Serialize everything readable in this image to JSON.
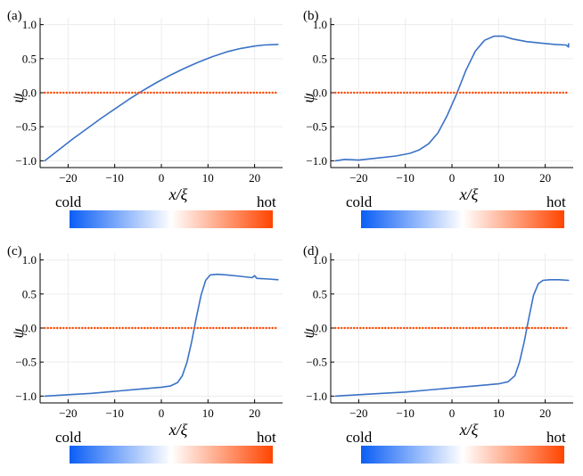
{
  "chart_data": [
    {
      "type": "line",
      "panel_label": "(a)",
      "xlabel": "x/ξ",
      "ylabel": "ψ",
      "xlim": [
        -26,
        26
      ],
      "ylim": [
        -1.1,
        1.1
      ],
      "xticks": [
        "−20",
        "−10",
        "0",
        "10",
        "20"
      ],
      "xtick_values": [
        -20,
        -10,
        0,
        10,
        20
      ],
      "yticks": [
        "−1.0",
        "−0.5",
        "0.0",
        "0.5",
        "1.0"
      ],
      "ytick_values": [
        -1.0,
        -0.5,
        0.0,
        0.5,
        1.0
      ],
      "grid": true,
      "series": [
        {
          "name": "psi",
          "style": "solid",
          "color": "#3a72c6",
          "x": [
            -25,
            -22,
            -19,
            -16,
            -13,
            -10,
            -7,
            -4,
            -1,
            2,
            5,
            8,
            11,
            14,
            17,
            20,
            22,
            25
          ],
          "y": [
            -1.0,
            -0.84,
            -0.68,
            -0.53,
            -0.38,
            -0.24,
            -0.1,
            0.03,
            0.15,
            0.26,
            0.36,
            0.45,
            0.53,
            0.6,
            0.65,
            0.685,
            0.7,
            0.71
          ]
        },
        {
          "name": "reference",
          "style": "dotted",
          "color": "#ff4a00",
          "x": [
            -25,
            25
          ],
          "y": [
            0,
            0
          ]
        }
      ],
      "colorbar": {
        "left_label": "cold",
        "right_label": "hot",
        "split": 0.5,
        "cold_colors": [
          "#0a5ef5",
          "#ffffff"
        ],
        "hot_colors": [
          "#ffffff",
          "#ff4500"
        ]
      }
    },
    {
      "type": "line",
      "panel_label": "(b)",
      "xlabel": "x/ξ",
      "ylabel": "ψ",
      "xlim": [
        -26,
        26
      ],
      "ylim": [
        -1.1,
        1.1
      ],
      "xticks": [
        "−20",
        "−10",
        "0",
        "10",
        "20"
      ],
      "xtick_values": [
        -20,
        -10,
        0,
        10,
        20
      ],
      "yticks": [
        "−1.0",
        "−0.5",
        "0.0",
        "0.5",
        "1.0"
      ],
      "ytick_values": [
        -1.0,
        -0.5,
        0.0,
        0.5,
        1.0
      ],
      "grid": true,
      "series": [
        {
          "name": "psi",
          "style": "solid",
          "color": "#3a72c6",
          "x": [
            -25,
            -23,
            -20,
            -16,
            -12,
            -9,
            -7,
            -5,
            -3,
            -1,
            1,
            3,
            5,
            7,
            9,
            11,
            13,
            16,
            19,
            22,
            24.5,
            25,
            25
          ],
          "y": [
            -1.0,
            -0.98,
            -0.99,
            -0.96,
            -0.93,
            -0.89,
            -0.84,
            -0.75,
            -0.59,
            -0.33,
            -0.02,
            0.33,
            0.61,
            0.77,
            0.83,
            0.83,
            0.79,
            0.75,
            0.73,
            0.71,
            0.7,
            0.67,
            0.72
          ]
        },
        {
          "name": "reference",
          "style": "dotted",
          "color": "#ff4a00",
          "x": [
            -25,
            25
          ],
          "y": [
            0,
            0
          ]
        }
      ],
      "colorbar": {
        "left_label": "cold",
        "right_label": "hot",
        "split": 0.5,
        "cold_colors": [
          "#0a5ef5",
          "#ffffff"
        ],
        "hot_colors": [
          "#ffffff",
          "#ff4500"
        ]
      }
    },
    {
      "type": "line",
      "panel_label": "(c)",
      "xlabel": "x/ξ",
      "ylabel": "ψ",
      "xlim": [
        -26,
        26
      ],
      "ylim": [
        -1.1,
        1.1
      ],
      "xticks": [
        "−20",
        "−10",
        "0",
        "10",
        "20"
      ],
      "xtick_values": [
        -20,
        -10,
        0,
        10,
        20
      ],
      "yticks": [
        "−1.0",
        "−0.5",
        "0.0",
        "0.5",
        "1.0"
      ],
      "ytick_values": [
        -1.0,
        -0.5,
        0.0,
        0.5,
        1.0
      ],
      "grid": true,
      "series": [
        {
          "name": "psi",
          "style": "solid",
          "color": "#3a72c6",
          "x": [
            -25,
            -20,
            -15,
            -10,
            -5,
            0,
            2,
            3.5,
            4.5,
            5.5,
            6.5,
            7.5,
            8.5,
            9.5,
            10.5,
            12,
            14,
            17,
            19.5,
            20,
            20.5,
            23,
            25
          ],
          "y": [
            -1.0,
            -0.98,
            -0.96,
            -0.93,
            -0.9,
            -0.87,
            -0.85,
            -0.8,
            -0.7,
            -0.5,
            -0.2,
            0.15,
            0.48,
            0.7,
            0.78,
            0.79,
            0.78,
            0.76,
            0.74,
            0.77,
            0.73,
            0.72,
            0.71
          ]
        },
        {
          "name": "reference",
          "style": "dotted",
          "color": "#ff4a00",
          "x": [
            -25,
            25
          ],
          "y": [
            0,
            0
          ]
        }
      ],
      "colorbar": {
        "left_label": "cold",
        "right_label": "hot",
        "split": 0.5,
        "cold_colors": [
          "#0a5ef5",
          "#ffffff"
        ],
        "hot_colors": [
          "#ffffff",
          "#ff4500"
        ]
      }
    },
    {
      "type": "line",
      "panel_label": "(d)",
      "xlabel": "x/ξ",
      "ylabel": "ψ",
      "xlim": [
        -26,
        26
      ],
      "ylim": [
        -1.1,
        1.1
      ],
      "xticks": [
        "−20",
        "−10",
        "0",
        "10",
        "20"
      ],
      "xtick_values": [
        -20,
        -10,
        0,
        10,
        20
      ],
      "yticks": [
        "−1.0",
        "−0.5",
        "0.0",
        "0.5",
        "1.0"
      ],
      "ytick_values": [
        -1.0,
        -0.5,
        0.0,
        0.5,
        1.0
      ],
      "grid": true,
      "series": [
        {
          "name": "psi",
          "style": "solid",
          "color": "#3a72c6",
          "x": [
            -25,
            -20,
            -15,
            -10,
            -5,
            0,
            5,
            10,
            12,
            13.5,
            14.5,
            15.5,
            16.5,
            17.5,
            18.5,
            19.5,
            21,
            23,
            25
          ],
          "y": [
            -1.0,
            -0.98,
            -0.96,
            -0.94,
            -0.91,
            -0.88,
            -0.85,
            -0.82,
            -0.79,
            -0.7,
            -0.5,
            -0.2,
            0.15,
            0.48,
            0.65,
            0.7,
            0.71,
            0.71,
            0.7
          ]
        },
        {
          "name": "reference",
          "style": "dotted",
          "color": "#ff4a00",
          "x": [
            -25,
            25
          ],
          "y": [
            0,
            0
          ]
        }
      ],
      "colorbar": {
        "left_label": "cold",
        "right_label": "hot",
        "split": 0.5,
        "cold_colors": [
          "#0a5ef5",
          "#ffffff"
        ],
        "hot_colors": [
          "#ffffff",
          "#ff4500"
        ]
      }
    }
  ]
}
